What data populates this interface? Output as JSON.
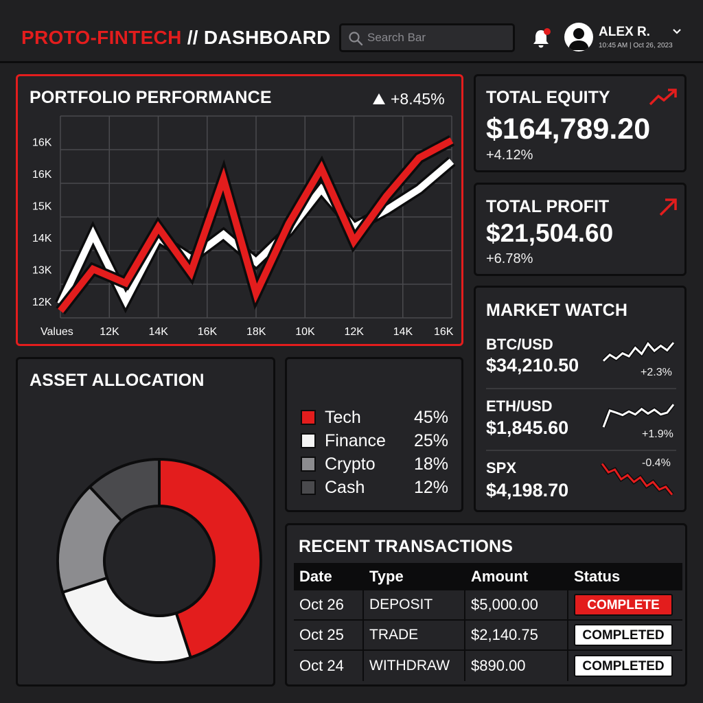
{
  "header": {
    "logo_brand": "PROTO-FINTECH",
    "logo_section": " // DASHBOARD",
    "search_placeholder": "Search Bar",
    "user_name": "ALEX R.",
    "user_meta": "10:45 AM | Oct 26, 2023"
  },
  "portfolio": {
    "title": "PORTFOLIO PERFORMANCE",
    "change": "+8.45%"
  },
  "kpis": {
    "equity": {
      "title": "TOTAL EQUITY",
      "value": "$164,789.20",
      "delta": "+4.12%"
    },
    "profit": {
      "title": "TOTAL PROFIT",
      "value": "$21,504.60",
      "delta": "+6.78%"
    }
  },
  "market_watch": {
    "title": "MARKET WATCH",
    "items": [
      {
        "symbol": "BTC/USD",
        "price": "$34,210.50",
        "change": "+2.3%",
        "trend": "up",
        "spark": [
          0.35,
          0.55,
          0.42,
          0.6,
          0.5,
          0.78,
          0.58,
          0.92,
          0.68,
          0.85,
          0.7,
          0.95
        ]
      },
      {
        "symbol": "ETH/USD",
        "price": "$1,845.60",
        "change": "+1.9%",
        "trend": "up",
        "spark": [
          0.2,
          0.75,
          0.68,
          0.6,
          0.72,
          0.62,
          0.8,
          0.65,
          0.78,
          0.62,
          0.68,
          0.95
        ]
      },
      {
        "symbol": "SPX",
        "price": "$4,198.70",
        "change": "-0.4%",
        "trend": "down",
        "spark": [
          0.95,
          0.7,
          0.78,
          0.5,
          0.62,
          0.42,
          0.55,
          0.3,
          0.42,
          0.2,
          0.28,
          0.05
        ]
      }
    ]
  },
  "allocation": {
    "title": "ASSET ALLOCATION",
    "legend": [
      {
        "name": "Tech",
        "pct": "45%"
      },
      {
        "name": "Finance",
        "pct": "25%"
      },
      {
        "name": "Crypto",
        "pct": "18%"
      },
      {
        "name": "Cash",
        "pct": "12%"
      }
    ]
  },
  "transactions": {
    "title": "RECENT TRANSACTIONS",
    "columns": [
      "Date",
      "Type",
      "Amount",
      "Status"
    ],
    "rows": [
      {
        "date": "Oct 26",
        "type": "DEPOSIT",
        "amount": "$5,000.00",
        "status": "COMPLETE",
        "style": "red"
      },
      {
        "date": "Oct 25",
        "type": "TRADE",
        "amount": "$2,140.75",
        "status": "COMPLETED",
        "style": "white"
      },
      {
        "date": "Oct 24",
        "type": "WITHDRAW",
        "amount": "$890.00",
        "status": "COMPLETED",
        "style": "white"
      }
    ]
  },
  "colors": {
    "accent": "#e31d1d",
    "panel": "#242427",
    "background": "#202022",
    "border": "#0c0c0d"
  },
  "chart_data": [
    {
      "type": "line",
      "title": "PORTFOLIO PERFORMANCE",
      "x_axis_title": "Values",
      "x_tick_labels": [
        "12K",
        "14K",
        "16K",
        "18K",
        "10K",
        "12K",
        "14K",
        "16K"
      ],
      "y_tick_labels": [
        "12K",
        "13K",
        "14K",
        "15K",
        "16K",
        "16K"
      ],
      "x": [
        0,
        1,
        2,
        3,
        4,
        5,
        6,
        7,
        8,
        9,
        10,
        11,
        12
      ],
      "ylim": [
        11.5,
        17.3
      ],
      "series": [
        {
          "color": "#e31d1d",
          "values": [
            11.7,
            12.9,
            12.5,
            14.1,
            12.8,
            15.5,
            12.2,
            14.2,
            15.8,
            13.7,
            15.0,
            16.1,
            16.6
          ]
        },
        {
          "color": "#ffffff",
          "values": [
            11.9,
            13.9,
            12.0,
            13.8,
            13.2,
            13.9,
            13.1,
            14.0,
            15.2,
            14.1,
            14.6,
            15.2,
            16.0
          ]
        }
      ],
      "grid": true
    },
    {
      "type": "pie",
      "title": "ASSET ALLOCATION",
      "categories": [
        "Tech",
        "Finance",
        "Crypto",
        "Cash"
      ],
      "values": [
        45,
        25,
        18,
        12
      ],
      "colors": [
        "#e31d1d",
        "#f4f4f4",
        "#8c8c8f",
        "#4a4a4d"
      ],
      "donut": true
    }
  ]
}
